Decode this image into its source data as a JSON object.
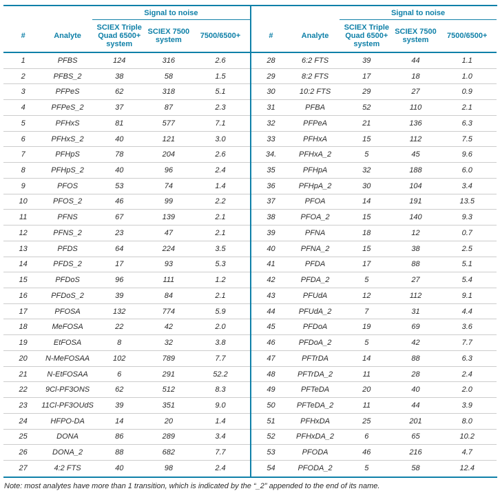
{
  "colors": {
    "accent_teal": "#0f80a8",
    "row_divider": "#cccccc",
    "body_text": "#2b2b2b"
  },
  "table": {
    "signal_to_noise_label": "Signal to noise",
    "columns": [
      "#",
      "Analyte",
      "SCIEX Triple Quad 6500+ system",
      "SCIEX 7500 system",
      "7500/6500+"
    ],
    "left_rows": [
      [
        "1",
        "PFBS",
        "124",
        "316",
        "2.6"
      ],
      [
        "2",
        "PFBS_2",
        "38",
        "58",
        "1.5"
      ],
      [
        "3",
        "PFPeS",
        "62",
        "318",
        "5.1"
      ],
      [
        "4",
        "PFPeS_2",
        "37",
        "87",
        "2.3"
      ],
      [
        "5",
        "PFHxS",
        "81",
        "577",
        "7.1"
      ],
      [
        "6",
        "PFHxS_2",
        "40",
        "121",
        "3.0"
      ],
      [
        "7",
        "PFHpS",
        "78",
        "204",
        "2.6"
      ],
      [
        "8",
        "PFHpS_2",
        "40",
        "96",
        "2.4"
      ],
      [
        "9",
        "PFOS",
        "53",
        "74",
        "1.4"
      ],
      [
        "10",
        "PFOS_2",
        "46",
        "99",
        "2.2"
      ],
      [
        "11",
        "PFNS",
        "67",
        "139",
        "2.1"
      ],
      [
        "12",
        "PFNS_2",
        "23",
        "47",
        "2.1"
      ],
      [
        "13",
        "PFDS",
        "64",
        "224",
        "3.5"
      ],
      [
        "14",
        "PFDS_2",
        "17",
        "93",
        "5.3"
      ],
      [
        "15",
        "PFDoS",
        "96",
        "111",
        "1.2"
      ],
      [
        "16",
        "PFDoS_2",
        "39",
        "84",
        "2.1"
      ],
      [
        "17",
        "PFOSA",
        "132",
        "774",
        "5.9"
      ],
      [
        "18",
        "MeFOSA",
        "22",
        "42",
        "2.0"
      ],
      [
        "19",
        "EtFOSA",
        "8",
        "32",
        "3.8"
      ],
      [
        "20",
        "N-MeFOSAA",
        "102",
        "789",
        "7.7"
      ],
      [
        "21",
        "N-EtFOSAA",
        "6",
        "291",
        "52.2"
      ],
      [
        "22",
        "9Cl-PF3ONS",
        "62",
        "512",
        "8.3"
      ],
      [
        "23",
        "11Cl-PF3OUdS",
        "39",
        "351",
        "9.0"
      ],
      [
        "24",
        "HFPO-DA",
        "14",
        "20",
        "1.4"
      ],
      [
        "25",
        "DONA",
        "86",
        "289",
        "3.4"
      ],
      [
        "26",
        "DONA_2",
        "88",
        "682",
        "7.7"
      ],
      [
        "27",
        "4:2 FTS",
        "40",
        "98",
        "2.4"
      ]
    ],
    "right_rows": [
      [
        "28",
        "6:2 FTS",
        "39",
        "44",
        "1.1"
      ],
      [
        "29",
        "8:2 FTS",
        "17",
        "18",
        "1.0"
      ],
      [
        "30",
        "10:2 FTS",
        "29",
        "27",
        "0.9"
      ],
      [
        "31",
        "PFBA",
        "52",
        "110",
        "2.1"
      ],
      [
        "32",
        "PFPeA",
        "21",
        "136",
        "6.3"
      ],
      [
        "33",
        "PFHxA",
        "15",
        "112",
        "7.5"
      ],
      [
        "34.",
        "PFHxA_2",
        "5",
        "45",
        "9.6"
      ],
      [
        "35",
        "PFHpA",
        "32",
        "188",
        "6.0"
      ],
      [
        "36",
        "PFHpA_2",
        "30",
        "104",
        "3.4"
      ],
      [
        "37",
        "PFOA",
        "14",
        "191",
        "13.5"
      ],
      [
        "38",
        "PFOA_2",
        "15",
        "140",
        "9.3"
      ],
      [
        "39",
        "PFNA",
        "18",
        "12",
        "0.7"
      ],
      [
        "40",
        "PFNA_2",
        "15",
        "38",
        "2.5"
      ],
      [
        "41",
        "PFDA",
        "17",
        "88",
        "5.1"
      ],
      [
        "42",
        "PFDA_2",
        "5",
        "27",
        "5.4"
      ],
      [
        "43",
        "PFUdA",
        "12",
        "112",
        "9.1"
      ],
      [
        "44",
        "PFUdA_2",
        "7",
        "31",
        "4.4"
      ],
      [
        "45",
        "PFDoA",
        "19",
        "69",
        "3.6"
      ],
      [
        "46",
        "PFDoA_2",
        "5",
        "42",
        "7.7"
      ],
      [
        "47",
        "PFTrDA",
        "14",
        "88",
        "6.3"
      ],
      [
        "48",
        "PFTrDA_2",
        "11",
        "28",
        "2.4"
      ],
      [
        "49",
        "PFTeDA",
        "20",
        "40",
        "2.0"
      ],
      [
        "50",
        "PFTeDA_2",
        "11",
        "44",
        "3.9"
      ],
      [
        "51",
        "PFHxDA",
        "25",
        "201",
        "8.0"
      ],
      [
        "52",
        "PFHxDA_2",
        "6",
        "65",
        "10.2"
      ],
      [
        "53",
        "PFODA",
        "46",
        "216",
        "4.7"
      ],
      [
        "54",
        "PFODA_2",
        "5",
        "58",
        "12.4"
      ]
    ]
  },
  "note": "Note: most analytes have more than 1 transition, which is indicated by the “_2” appended to the end of its name."
}
